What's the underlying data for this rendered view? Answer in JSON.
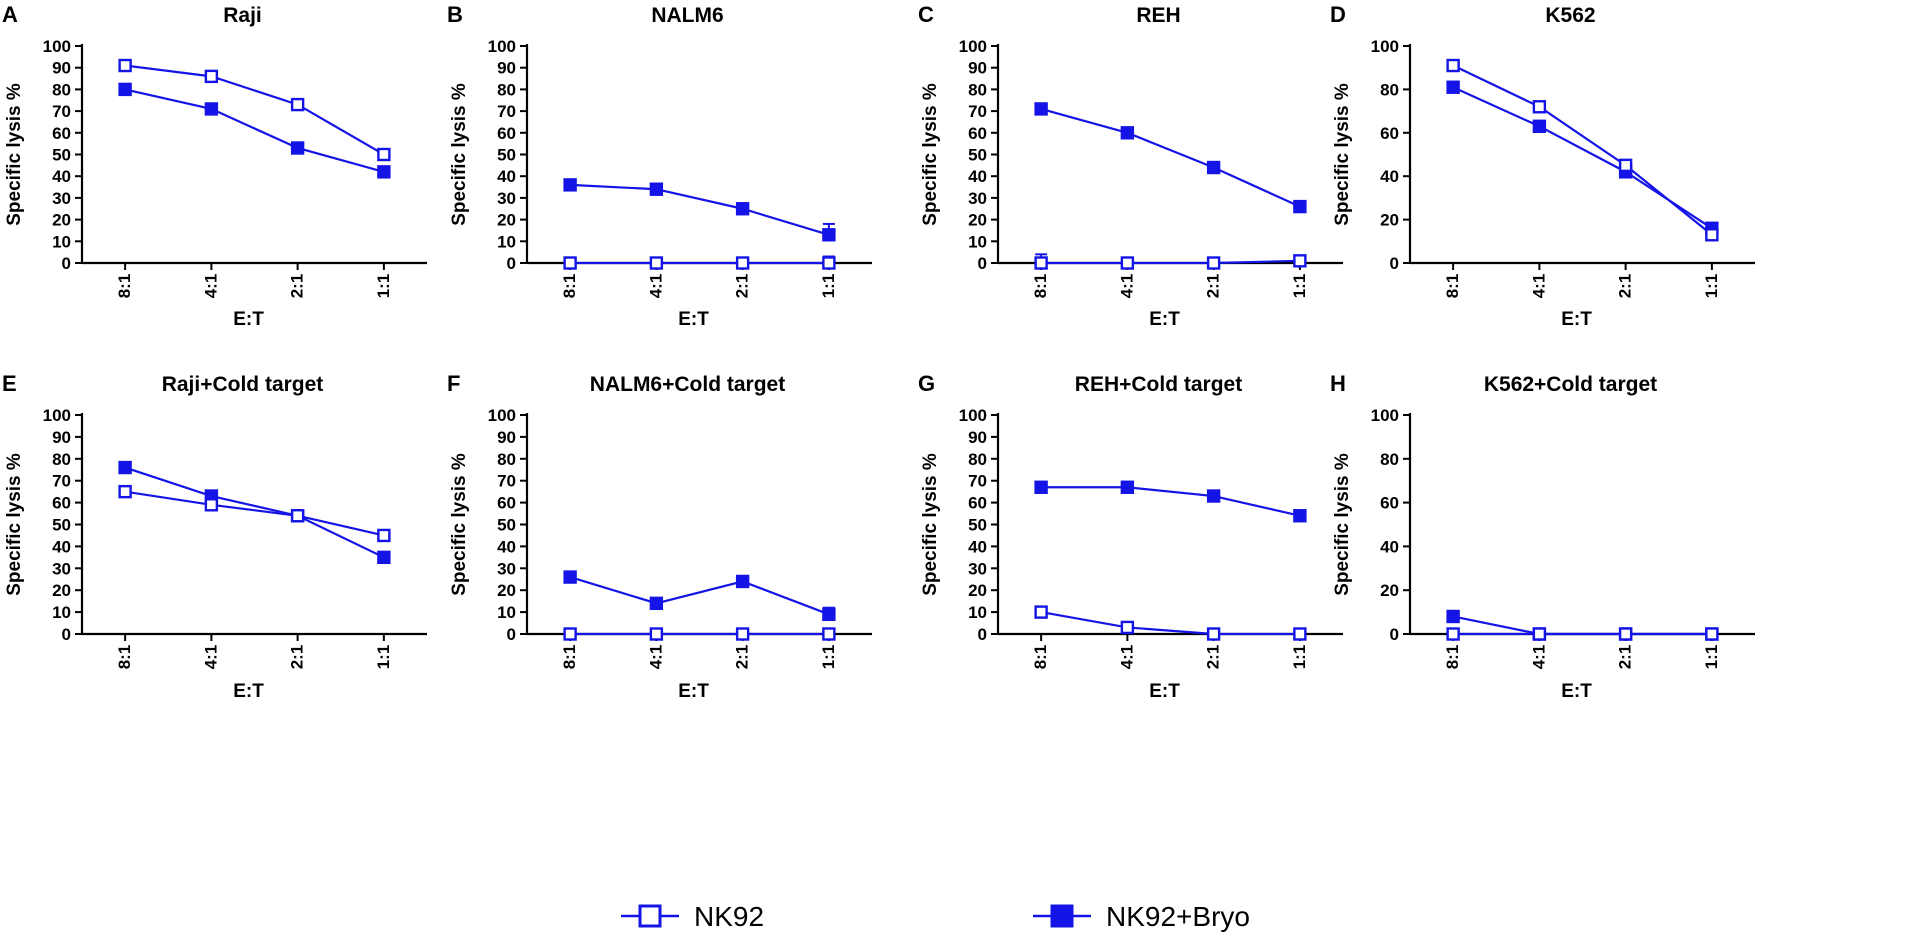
{
  "colors": {
    "series": "#1414e6",
    "axis": "#000000"
  },
  "legend": {
    "items": [
      {
        "label": "NK92",
        "marker": "open-square"
      },
      {
        "label": "NK92+Bryo",
        "marker": "filled-square"
      }
    ]
  },
  "chart_data": [
    {
      "panel": "A",
      "type": "line",
      "title": "Raji",
      "xlabel": "E:T",
      "ylabel": "Specific lysis %",
      "categories": [
        "8:1",
        "4:1",
        "2:1",
        "1:1"
      ],
      "ylim": [
        0,
        100
      ],
      "yticks": [
        0,
        10,
        20,
        30,
        40,
        50,
        60,
        70,
        80,
        90,
        100
      ],
      "series": [
        {
          "name": "NK92",
          "values": [
            91,
            86,
            73,
            50
          ]
        },
        {
          "name": "NK92+Bryo",
          "values": [
            80,
            71,
            53,
            42
          ]
        }
      ]
    },
    {
      "panel": "B",
      "type": "line",
      "title": "NALM6",
      "xlabel": "E:T",
      "ylabel": "Specific lysis %",
      "categories": [
        "8:1",
        "4:1",
        "2:1",
        "1:1"
      ],
      "ylim": [
        0,
        100
      ],
      "yticks": [
        0,
        10,
        20,
        30,
        40,
        50,
        60,
        70,
        80,
        90,
        100
      ],
      "series": [
        {
          "name": "NK92",
          "values": [
            0,
            0,
            0,
            0
          ],
          "errors": [
            0,
            0,
            0,
            3
          ]
        },
        {
          "name": "NK92+Bryo",
          "values": [
            36,
            34,
            25,
            13
          ],
          "errors": [
            0,
            0,
            0,
            5
          ]
        }
      ]
    },
    {
      "panel": "C",
      "type": "line",
      "title": "REH",
      "xlabel": "E:T",
      "ylabel": "Specific lysis %",
      "categories": [
        "8:1",
        "4:1",
        "2:1",
        "1:1"
      ],
      "ylim": [
        0,
        100
      ],
      "yticks": [
        0,
        10,
        20,
        30,
        40,
        50,
        60,
        70,
        80,
        90,
        100
      ],
      "series": [
        {
          "name": "NK92",
          "values": [
            0,
            0,
            0,
            1
          ],
          "errors": [
            4,
            0,
            0,
            0
          ]
        },
        {
          "name": "NK92+Bryo",
          "values": [
            71,
            60,
            44,
            26
          ]
        }
      ]
    },
    {
      "panel": "D",
      "type": "line",
      "title": "K562",
      "xlabel": "E:T",
      "ylabel": "Specific lysis %",
      "categories": [
        "8:1",
        "4:1",
        "2:1",
        "1:1"
      ],
      "ylim": [
        0,
        100
      ],
      "yticks": [
        0,
        20,
        40,
        60,
        80,
        100
      ],
      "series": [
        {
          "name": "NK92",
          "values": [
            91,
            72,
            45,
            13
          ]
        },
        {
          "name": "NK92+Bryo",
          "values": [
            81,
            63,
            42,
            16
          ]
        }
      ]
    },
    {
      "panel": "E",
      "type": "line",
      "title": "Raji+Cold target",
      "xlabel": "E:T",
      "ylabel": "Specific lysis %",
      "categories": [
        "8:1",
        "4:1",
        "2:1",
        "1:1"
      ],
      "ylim": [
        0,
        100
      ],
      "yticks": [
        0,
        10,
        20,
        30,
        40,
        50,
        60,
        70,
        80,
        90,
        100
      ],
      "series": [
        {
          "name": "NK92",
          "values": [
            65,
            59,
            54,
            45
          ]
        },
        {
          "name": "NK92+Bryo",
          "values": [
            76,
            63,
            54,
            35
          ]
        }
      ]
    },
    {
      "panel": "F",
      "type": "line",
      "title": "NALM6+Cold target",
      "xlabel": "E:T",
      "ylabel": "Specific lysis %",
      "categories": [
        "8:1",
        "4:1",
        "2:1",
        "1:1"
      ],
      "ylim": [
        0,
        100
      ],
      "yticks": [
        0,
        10,
        20,
        30,
        40,
        50,
        60,
        70,
        80,
        90,
        100
      ],
      "series": [
        {
          "name": "NK92",
          "values": [
            0,
            0,
            0,
            0
          ]
        },
        {
          "name": "NK92+Bryo",
          "values": [
            26,
            14,
            24,
            9
          ],
          "errors": [
            0,
            0,
            0,
            3
          ]
        }
      ]
    },
    {
      "panel": "G",
      "type": "line",
      "title": "REH+Cold target",
      "xlabel": "E:T",
      "ylabel": "Specific lysis %",
      "categories": [
        "8:1",
        "4:1",
        "2:1",
        "1:1"
      ],
      "ylim": [
        0,
        100
      ],
      "yticks": [
        0,
        10,
        20,
        30,
        40,
        50,
        60,
        70,
        80,
        90,
        100
      ],
      "series": [
        {
          "name": "NK92",
          "values": [
            10,
            3,
            0,
            0
          ]
        },
        {
          "name": "NK92+Bryo",
          "values": [
            67,
            67,
            63,
            54
          ]
        }
      ]
    },
    {
      "panel": "H",
      "type": "line",
      "title": "K562+Cold target",
      "xlabel": "E:T",
      "ylabel": "Specific lysis %",
      "categories": [
        "8:1",
        "4:1",
        "2:1",
        "1:1"
      ],
      "ylim": [
        0,
        100
      ],
      "yticks": [
        0,
        20,
        40,
        60,
        80,
        100
      ],
      "series": [
        {
          "name": "NK92",
          "values": [
            0,
            0,
            0,
            0
          ]
        },
        {
          "name": "NK92+Bryo",
          "values": [
            8,
            0,
            0,
            0
          ]
        }
      ]
    }
  ]
}
